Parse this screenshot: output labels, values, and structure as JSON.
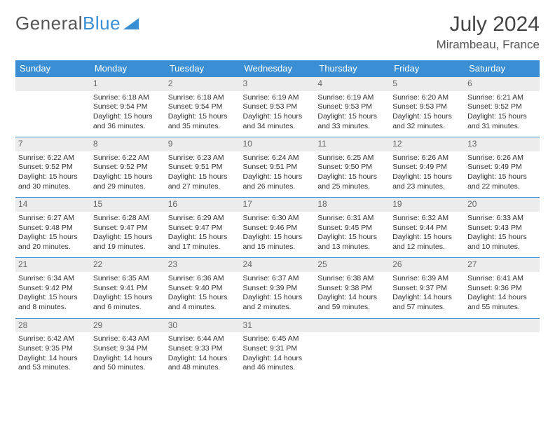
{
  "logo": {
    "text1": "General",
    "text2": "Blue"
  },
  "title": "July 2024",
  "location": "Mirambeau, France",
  "colors": {
    "header_bg": "#3a8fd4",
    "header_fg": "#ffffff",
    "daynum_bg": "#ececec",
    "daynum_fg": "#666666",
    "row_border": "#3a8fd4",
    "text": "#333333",
    "background": "#ffffff"
  },
  "fonts": {
    "title_size": 30,
    "location_size": 17,
    "th_size": 13,
    "cell_size": 10.5
  },
  "weekdays": [
    "Sunday",
    "Monday",
    "Tuesday",
    "Wednesday",
    "Thursday",
    "Friday",
    "Saturday"
  ],
  "weeks": [
    [
      null,
      {
        "n": "1",
        "sr": "Sunrise: 6:18 AM",
        "ss": "Sunset: 9:54 PM",
        "dl": "Daylight: 15 hours and 36 minutes."
      },
      {
        "n": "2",
        "sr": "Sunrise: 6:18 AM",
        "ss": "Sunset: 9:54 PM",
        "dl": "Daylight: 15 hours and 35 minutes."
      },
      {
        "n": "3",
        "sr": "Sunrise: 6:19 AM",
        "ss": "Sunset: 9:53 PM",
        "dl": "Daylight: 15 hours and 34 minutes."
      },
      {
        "n": "4",
        "sr": "Sunrise: 6:19 AM",
        "ss": "Sunset: 9:53 PM",
        "dl": "Daylight: 15 hours and 33 minutes."
      },
      {
        "n": "5",
        "sr": "Sunrise: 6:20 AM",
        "ss": "Sunset: 9:53 PM",
        "dl": "Daylight: 15 hours and 32 minutes."
      },
      {
        "n": "6",
        "sr": "Sunrise: 6:21 AM",
        "ss": "Sunset: 9:52 PM",
        "dl": "Daylight: 15 hours and 31 minutes."
      }
    ],
    [
      {
        "n": "7",
        "sr": "Sunrise: 6:22 AM",
        "ss": "Sunset: 9:52 PM",
        "dl": "Daylight: 15 hours and 30 minutes."
      },
      {
        "n": "8",
        "sr": "Sunrise: 6:22 AM",
        "ss": "Sunset: 9:52 PM",
        "dl": "Daylight: 15 hours and 29 minutes."
      },
      {
        "n": "9",
        "sr": "Sunrise: 6:23 AM",
        "ss": "Sunset: 9:51 PM",
        "dl": "Daylight: 15 hours and 27 minutes."
      },
      {
        "n": "10",
        "sr": "Sunrise: 6:24 AM",
        "ss": "Sunset: 9:51 PM",
        "dl": "Daylight: 15 hours and 26 minutes."
      },
      {
        "n": "11",
        "sr": "Sunrise: 6:25 AM",
        "ss": "Sunset: 9:50 PM",
        "dl": "Daylight: 15 hours and 25 minutes."
      },
      {
        "n": "12",
        "sr": "Sunrise: 6:26 AM",
        "ss": "Sunset: 9:49 PM",
        "dl": "Daylight: 15 hours and 23 minutes."
      },
      {
        "n": "13",
        "sr": "Sunrise: 6:26 AM",
        "ss": "Sunset: 9:49 PM",
        "dl": "Daylight: 15 hours and 22 minutes."
      }
    ],
    [
      {
        "n": "14",
        "sr": "Sunrise: 6:27 AM",
        "ss": "Sunset: 9:48 PM",
        "dl": "Daylight: 15 hours and 20 minutes."
      },
      {
        "n": "15",
        "sr": "Sunrise: 6:28 AM",
        "ss": "Sunset: 9:47 PM",
        "dl": "Daylight: 15 hours and 19 minutes."
      },
      {
        "n": "16",
        "sr": "Sunrise: 6:29 AM",
        "ss": "Sunset: 9:47 PM",
        "dl": "Daylight: 15 hours and 17 minutes."
      },
      {
        "n": "17",
        "sr": "Sunrise: 6:30 AM",
        "ss": "Sunset: 9:46 PM",
        "dl": "Daylight: 15 hours and 15 minutes."
      },
      {
        "n": "18",
        "sr": "Sunrise: 6:31 AM",
        "ss": "Sunset: 9:45 PM",
        "dl": "Daylight: 15 hours and 13 minutes."
      },
      {
        "n": "19",
        "sr": "Sunrise: 6:32 AM",
        "ss": "Sunset: 9:44 PM",
        "dl": "Daylight: 15 hours and 12 minutes."
      },
      {
        "n": "20",
        "sr": "Sunrise: 6:33 AM",
        "ss": "Sunset: 9:43 PM",
        "dl": "Daylight: 15 hours and 10 minutes."
      }
    ],
    [
      {
        "n": "21",
        "sr": "Sunrise: 6:34 AM",
        "ss": "Sunset: 9:42 PM",
        "dl": "Daylight: 15 hours and 8 minutes."
      },
      {
        "n": "22",
        "sr": "Sunrise: 6:35 AM",
        "ss": "Sunset: 9:41 PM",
        "dl": "Daylight: 15 hours and 6 minutes."
      },
      {
        "n": "23",
        "sr": "Sunrise: 6:36 AM",
        "ss": "Sunset: 9:40 PM",
        "dl": "Daylight: 15 hours and 4 minutes."
      },
      {
        "n": "24",
        "sr": "Sunrise: 6:37 AM",
        "ss": "Sunset: 9:39 PM",
        "dl": "Daylight: 15 hours and 2 minutes."
      },
      {
        "n": "25",
        "sr": "Sunrise: 6:38 AM",
        "ss": "Sunset: 9:38 PM",
        "dl": "Daylight: 14 hours and 59 minutes."
      },
      {
        "n": "26",
        "sr": "Sunrise: 6:39 AM",
        "ss": "Sunset: 9:37 PM",
        "dl": "Daylight: 14 hours and 57 minutes."
      },
      {
        "n": "27",
        "sr": "Sunrise: 6:41 AM",
        "ss": "Sunset: 9:36 PM",
        "dl": "Daylight: 14 hours and 55 minutes."
      }
    ],
    [
      {
        "n": "28",
        "sr": "Sunrise: 6:42 AM",
        "ss": "Sunset: 9:35 PM",
        "dl": "Daylight: 14 hours and 53 minutes."
      },
      {
        "n": "29",
        "sr": "Sunrise: 6:43 AM",
        "ss": "Sunset: 9:34 PM",
        "dl": "Daylight: 14 hours and 50 minutes."
      },
      {
        "n": "30",
        "sr": "Sunrise: 6:44 AM",
        "ss": "Sunset: 9:33 PM",
        "dl": "Daylight: 14 hours and 48 minutes."
      },
      {
        "n": "31",
        "sr": "Sunrise: 6:45 AM",
        "ss": "Sunset: 9:31 PM",
        "dl": "Daylight: 14 hours and 46 minutes."
      },
      null,
      null,
      null
    ]
  ]
}
